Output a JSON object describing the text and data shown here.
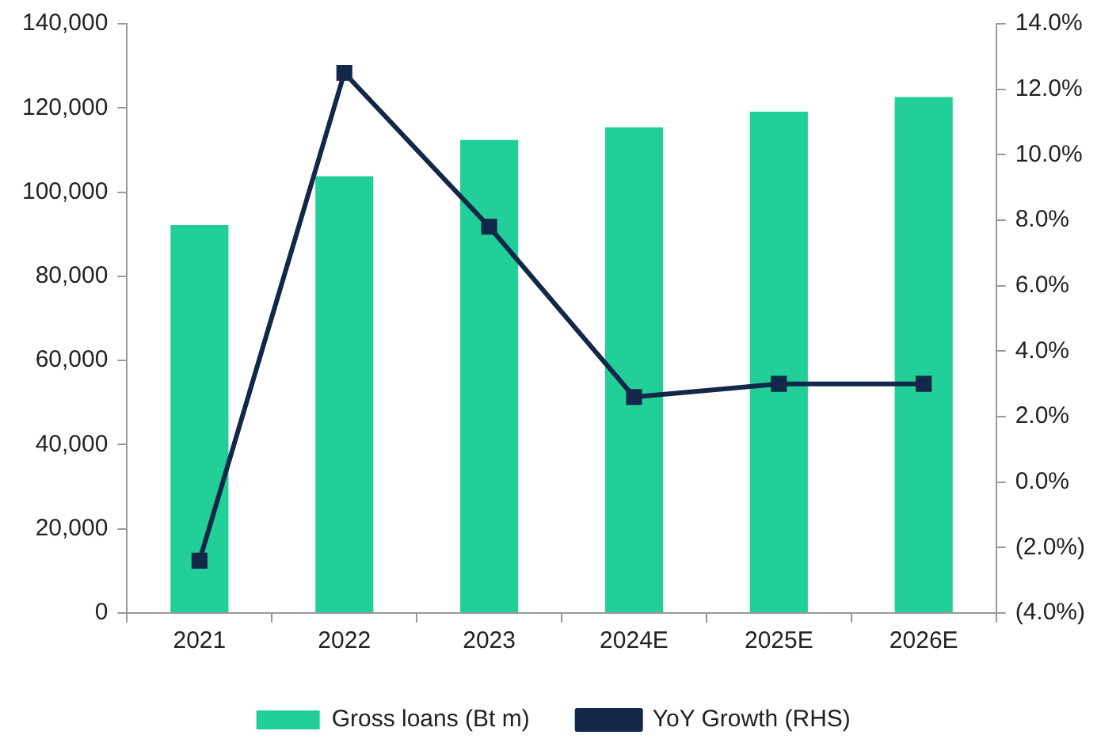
{
  "chart_data": {
    "type": "bar",
    "categories": [
      "2021",
      "2022",
      "2023",
      "2024E",
      "2025E",
      "2026E"
    ],
    "series": [
      {
        "name": "Gross loans (Bt m)",
        "color": "#22cf98",
        "values": [
          92200,
          103800,
          112400,
          115400,
          119100,
          122600
        ]
      },
      {
        "name": "YoY Growth (RHS)",
        "type": "line",
        "axis": "y2",
        "color": "#132848",
        "values": [
          -2.4,
          12.5,
          7.8,
          2.6,
          3.0,
          3.0
        ]
      }
    ],
    "ylim": [
      0,
      140000
    ],
    "yticks": [
      {
        "value": 0,
        "label": "0"
      },
      {
        "value": 20000,
        "label": "20,000"
      },
      {
        "value": 40000,
        "label": "40,000"
      },
      {
        "value": 60000,
        "label": "60,000"
      },
      {
        "value": 80000,
        "label": "80,000"
      },
      {
        "value": 100000,
        "label": "100,000"
      },
      {
        "value": 120000,
        "label": "120,000"
      },
      {
        "value": 140000,
        "label": "140,000"
      }
    ],
    "y2lim": [
      -4,
      14
    ],
    "y2ticks": [
      {
        "value": -4,
        "label": "(4.0%)"
      },
      {
        "value": -2,
        "label": "(2.0%)"
      },
      {
        "value": 0,
        "label": "0.0%"
      },
      {
        "value": 2,
        "label": "2.0%"
      },
      {
        "value": 4,
        "label": "4.0%"
      },
      {
        "value": 6,
        "label": "6.0%"
      },
      {
        "value": 8,
        "label": "8.0%"
      },
      {
        "value": 10,
        "label": "10.0%"
      },
      {
        "value": 12,
        "label": "12.0%"
      },
      {
        "value": 14,
        "label": "14.0%"
      }
    ],
    "grid": false,
    "legend": "bottom",
    "marker": "square",
    "line_style": "solid"
  }
}
